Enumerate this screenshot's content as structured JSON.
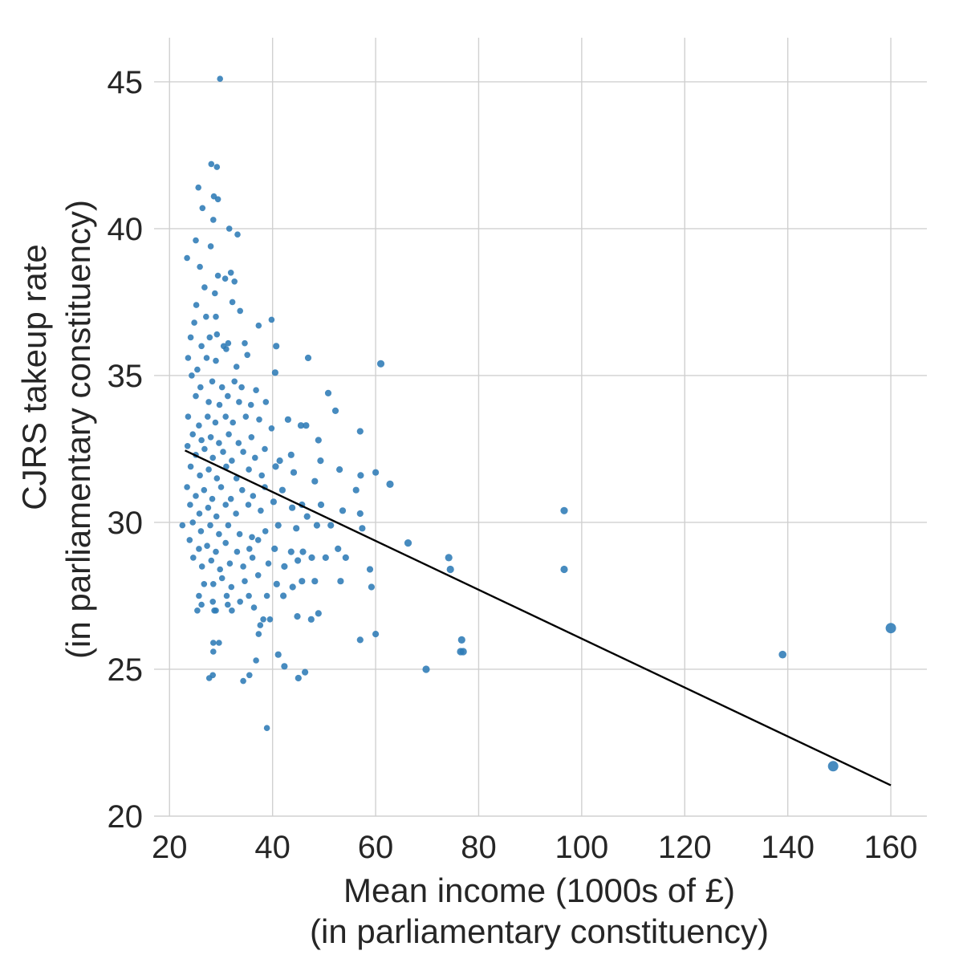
{
  "chart_data": {
    "type": "scatter",
    "xlabel_line1": "Mean income (1000s of £)",
    "xlabel_line2": "(in parliamentary constituency)",
    "ylabel_line1": "CJRS takeup rate",
    "ylabel_line2": "(in parliamentary constituency)",
    "xlim": [
      17,
      167
    ],
    "ylim": [
      20,
      46.5
    ],
    "x_ticks": [
      20,
      40,
      60,
      80,
      100,
      120,
      140,
      160
    ],
    "y_ticks": [
      20,
      25,
      30,
      35,
      40,
      45
    ],
    "grid": true,
    "point_color": "#2e7bb6",
    "line_color": "#000000",
    "trend_line": {
      "x": [
        23,
        160
      ],
      "y": [
        32.45,
        21.05
      ]
    },
    "points": [
      [
        29.8,
        45.1
      ],
      [
        28.1,
        42.2
      ],
      [
        29.2,
        42.1
      ],
      [
        28.6,
        41.1
      ],
      [
        29.4,
        41.0
      ],
      [
        25.6,
        41.4
      ],
      [
        26.4,
        40.7
      ],
      [
        28.5,
        40.3
      ],
      [
        31.6,
        40.0
      ],
      [
        33.2,
        39.8
      ],
      [
        25.1,
        39.6
      ],
      [
        28.0,
        39.4
      ],
      [
        23.4,
        39.0
      ],
      [
        25.9,
        38.7
      ],
      [
        29.4,
        38.4
      ],
      [
        31.9,
        38.5
      ],
      [
        30.8,
        38.3
      ],
      [
        26.8,
        38.0
      ],
      [
        28.8,
        37.8
      ],
      [
        32.2,
        37.5
      ],
      [
        32.6,
        38.2
      ],
      [
        27.1,
        37.0
      ],
      [
        25.2,
        37.4
      ],
      [
        24.8,
        36.8
      ],
      [
        29.0,
        37.0
      ],
      [
        33.7,
        37.2
      ],
      [
        39.8,
        36.9
      ],
      [
        37.3,
        36.7
      ],
      [
        24.1,
        36.3
      ],
      [
        26.2,
        36.0
      ],
      [
        27.8,
        36.3
      ],
      [
        29.2,
        36.4
      ],
      [
        30.5,
        36.0
      ],
      [
        31.4,
        36.1
      ],
      [
        34.6,
        36.1
      ],
      [
        23.6,
        35.6
      ],
      [
        25.4,
        35.2
      ],
      [
        27.2,
        35.6
      ],
      [
        29.0,
        35.5
      ],
      [
        31.0,
        35.9
      ],
      [
        33.0,
        35.3
      ],
      [
        35.1,
        35.7
      ],
      [
        40.7,
        36.0
      ],
      [
        46.9,
        35.6
      ],
      [
        61.0,
        35.4
      ],
      [
        40.5,
        35.1
      ],
      [
        24.3,
        35.0
      ],
      [
        26.0,
        34.6
      ],
      [
        28.3,
        34.8
      ],
      [
        30.2,
        34.6
      ],
      [
        32.6,
        34.8
      ],
      [
        34.0,
        34.6
      ],
      [
        36.8,
        34.5
      ],
      [
        50.8,
        34.4
      ],
      [
        25.1,
        34.3
      ],
      [
        27.6,
        34.1
      ],
      [
        29.7,
        34.0
      ],
      [
        31.3,
        34.3
      ],
      [
        33.5,
        34.1
      ],
      [
        35.8,
        34.0
      ],
      [
        38.7,
        34.1
      ],
      [
        23.6,
        33.6
      ],
      [
        25.7,
        33.3
      ],
      [
        27.4,
        33.6
      ],
      [
        28.9,
        33.4
      ],
      [
        30.9,
        33.6
      ],
      [
        32.3,
        33.4
      ],
      [
        34.8,
        33.6
      ],
      [
        37.4,
        33.5
      ],
      [
        43.0,
        33.5
      ],
      [
        45.5,
        33.3
      ],
      [
        46.5,
        33.3
      ],
      [
        52.2,
        33.8
      ],
      [
        24.5,
        33.0
      ],
      [
        26.2,
        32.8
      ],
      [
        28.0,
        32.9
      ],
      [
        29.6,
        32.7
      ],
      [
        31.5,
        33.0
      ],
      [
        33.4,
        32.7
      ],
      [
        35.9,
        32.9
      ],
      [
        39.8,
        33.2
      ],
      [
        48.9,
        32.8
      ],
      [
        57.0,
        33.1
      ],
      [
        23.5,
        32.6
      ],
      [
        25.1,
        32.3
      ],
      [
        26.8,
        32.5
      ],
      [
        28.4,
        32.2
      ],
      [
        30.4,
        32.4
      ],
      [
        32.1,
        32.1
      ],
      [
        34.3,
        32.4
      ],
      [
        36.6,
        32.2
      ],
      [
        38.5,
        32.5
      ],
      [
        41.4,
        32.1
      ],
      [
        43.6,
        32.3
      ],
      [
        24.1,
        31.9
      ],
      [
        25.9,
        31.6
      ],
      [
        27.6,
        31.8
      ],
      [
        29.2,
        31.5
      ],
      [
        31.0,
        31.9
      ],
      [
        33.0,
        31.5
      ],
      [
        35.4,
        31.8
      ],
      [
        37.9,
        31.6
      ],
      [
        40.6,
        31.9
      ],
      [
        44.1,
        31.7
      ],
      [
        49.3,
        32.1
      ],
      [
        53.0,
        31.8
      ],
      [
        60.0,
        31.7
      ],
      [
        62.8,
        31.3
      ],
      [
        57.1,
        31.6
      ],
      [
        23.4,
        31.2
      ],
      [
        25.1,
        30.9
      ],
      [
        26.7,
        31.1
      ],
      [
        28.3,
        30.8
      ],
      [
        30.0,
        31.2
      ],
      [
        31.9,
        30.8
      ],
      [
        34.1,
        31.1
      ],
      [
        36.2,
        30.9
      ],
      [
        38.5,
        31.2
      ],
      [
        41.9,
        31.1
      ],
      [
        45.7,
        30.6
      ],
      [
        48.2,
        31.4
      ],
      [
        56.2,
        31.1
      ],
      [
        24.0,
        30.6
      ],
      [
        25.8,
        30.3
      ],
      [
        27.5,
        30.5
      ],
      [
        29.1,
        30.2
      ],
      [
        30.9,
        30.6
      ],
      [
        32.9,
        30.3
      ],
      [
        35.3,
        30.6
      ],
      [
        37.7,
        30.4
      ],
      [
        40.2,
        30.7
      ],
      [
        43.8,
        30.5
      ],
      [
        46.7,
        30.2
      ],
      [
        49.4,
        30.6
      ],
      [
        53.6,
        30.4
      ],
      [
        57.0,
        30.3
      ],
      [
        96.6,
        30.4
      ],
      [
        22.5,
        29.9
      ],
      [
        24.5,
        30.0
      ],
      [
        26.1,
        29.7
      ],
      [
        27.9,
        29.9
      ],
      [
        29.6,
        29.6
      ],
      [
        31.4,
        29.9
      ],
      [
        33.6,
        29.6
      ],
      [
        36.0,
        29.5
      ],
      [
        38.6,
        29.7
      ],
      [
        41.1,
        29.9
      ],
      [
        44.6,
        29.8
      ],
      [
        48.6,
        29.9
      ],
      [
        51.3,
        29.9
      ],
      [
        57.4,
        29.8
      ],
      [
        23.9,
        29.4
      ],
      [
        25.7,
        29.1
      ],
      [
        27.3,
        29.2
      ],
      [
        29.0,
        29.0
      ],
      [
        30.9,
        29.3
      ],
      [
        33.1,
        29.0
      ],
      [
        35.5,
        29.1
      ],
      [
        37.2,
        29.4
      ],
      [
        40.4,
        29.1
      ],
      [
        43.6,
        29.0
      ],
      [
        45.9,
        29.0
      ],
      [
        52.7,
        29.1
      ],
      [
        66.3,
        29.3
      ],
      [
        24.6,
        28.8
      ],
      [
        26.3,
        28.5
      ],
      [
        28.1,
        28.7
      ],
      [
        29.8,
        28.4
      ],
      [
        31.7,
        28.6
      ],
      [
        34.3,
        28.5
      ],
      [
        36.1,
        28.8
      ],
      [
        39.2,
        28.6
      ],
      [
        42.3,
        28.5
      ],
      [
        44.9,
        28.7
      ],
      [
        47.6,
        28.8
      ],
      [
        50.3,
        28.8
      ],
      [
        54.2,
        28.8
      ],
      [
        58.9,
        28.4
      ],
      [
        74.2,
        28.8
      ],
      [
        74.5,
        28.4
      ],
      [
        96.6,
        28.4
      ],
      [
        26.7,
        27.9
      ],
      [
        28.5,
        27.9
      ],
      [
        30.2,
        28.1
      ],
      [
        32.0,
        27.8
      ],
      [
        34.6,
        28.0
      ],
      [
        37.2,
        28.2
      ],
      [
        40.8,
        27.9
      ],
      [
        43.9,
        27.8
      ],
      [
        45.7,
        28.0
      ],
      [
        48.2,
        28.0
      ],
      [
        53.2,
        28.0
      ],
      [
        59.2,
        27.8
      ],
      [
        25.7,
        27.5
      ],
      [
        28.4,
        27.3
      ],
      [
        31.1,
        27.5
      ],
      [
        35.4,
        27.5
      ],
      [
        38.9,
        27.5
      ],
      [
        42.1,
        27.5
      ],
      [
        26.2,
        27.2
      ],
      [
        29.0,
        27.0
      ],
      [
        31.3,
        27.2
      ],
      [
        33.7,
        27.3
      ],
      [
        25.4,
        27.0
      ],
      [
        28.7,
        27.0
      ],
      [
        32.1,
        27.0
      ],
      [
        36.4,
        27.1
      ],
      [
        38.2,
        26.7
      ],
      [
        39.5,
        26.7
      ],
      [
        44.8,
        26.8
      ],
      [
        48.9,
        26.9
      ],
      [
        47.5,
        26.7
      ],
      [
        37.6,
        26.5
      ],
      [
        37.3,
        26.2
      ],
      [
        57.0,
        26.0
      ],
      [
        60.0,
        26.2
      ],
      [
        76.7,
        26.0
      ],
      [
        76.5,
        25.6
      ],
      [
        77.0,
        25.6
      ],
      [
        28.5,
        25.9
      ],
      [
        29.6,
        25.9
      ],
      [
        28.5,
        25.6
      ],
      [
        41.1,
        25.5
      ],
      [
        36.8,
        25.3
      ],
      [
        42.3,
        25.1
      ],
      [
        46.3,
        24.9
      ],
      [
        69.8,
        25.0
      ],
      [
        27.7,
        24.7
      ],
      [
        28.4,
        24.8
      ],
      [
        34.3,
        24.6
      ],
      [
        35.5,
        24.8
      ],
      [
        45.0,
        24.7
      ],
      [
        38.9,
        23.0
      ],
      [
        139.0,
        25.5
      ],
      [
        160.0,
        26.4
      ],
      [
        148.8,
        21.7
      ]
    ]
  }
}
